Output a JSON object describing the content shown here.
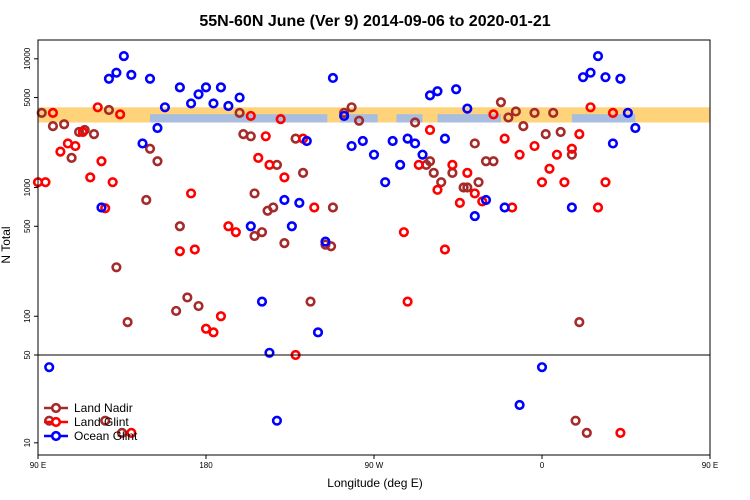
{
  "chart_data": {
    "type": "scatter",
    "title": "55N-60N June (Ver 9)   2014-09-06 to 2020-01-21",
    "xlabel": "Longitude (deg E)",
    "ylabel": "N Total",
    "x_scale": "longitude from 90 E to 180 (wrapping through 180 and 90 W)",
    "x_range": [
      90,
      450
    ],
    "x_ticks": [
      {
        "value": 90,
        "label": "90 E"
      },
      {
        "value": 180,
        "label": "180"
      },
      {
        "value": 270,
        "label": "90 W"
      },
      {
        "value": 360,
        "label": "0"
      },
      {
        "value": 450,
        "label": "90 E"
      },
      {
        "value": 540,
        "label": "180"
      }
    ],
    "y_scale": "log",
    "y_range": [
      8,
      14000
    ],
    "y_break_at": 50,
    "y_ticks_upper": [
      {
        "value": 50,
        "label": "50"
      },
      {
        "value": 100,
        "label": "100"
      },
      {
        "value": 500,
        "label": "500"
      },
      {
        "value": 1000,
        "label": "1000"
      },
      {
        "value": 5000,
        "label": "5000"
      },
      {
        "value": 10000,
        "label": "10000"
      }
    ],
    "y_ticks_lower": [
      {
        "value": 10,
        "label": "10"
      },
      {
        "value": 50,
        "label": "50"
      }
    ],
    "band": {
      "y_from": 3200,
      "y_to": 4200,
      "land_color": "#FFD37A",
      "ocean_color": "#A9BEDF"
    },
    "legend": {
      "position": "bottom-left",
      "entries": [
        "Land Nadir",
        "Land Glint",
        "Ocean Glint"
      ]
    },
    "series": [
      {
        "name": "Land Nadir",
        "color": "#A52A2A",
        "points": [
          [
            92,
            3800
          ],
          [
            98,
            3000
          ],
          [
            104,
            3100
          ],
          [
            108,
            1700
          ],
          [
            112,
            2700
          ],
          [
            115,
            2800
          ],
          [
            120,
            2600
          ],
          [
            128,
            4000
          ],
          [
            126,
            15
          ],
          [
            132,
            240
          ],
          [
            138,
            90
          ],
          [
            148,
            800
          ],
          [
            135,
            12
          ],
          [
            164,
            110
          ],
          [
            166,
            500
          ],
          [
            170,
            140
          ],
          [
            176,
            120
          ],
          [
            198,
            3800
          ],
          [
            200,
            2600
          ],
          [
            204,
            2500
          ],
          [
            206,
            900
          ],
          [
            206,
            420
          ],
          [
            210,
            450
          ],
          [
            213,
            660
          ],
          [
            216,
            700
          ],
          [
            218,
            1500
          ],
          [
            222,
            370
          ],
          [
            228,
            2400
          ],
          [
            232,
            1300
          ],
          [
            236,
            130
          ],
          [
            244,
            360
          ],
          [
            247,
            350
          ],
          [
            248,
            700
          ],
          [
            292,
            3200
          ],
          [
            298,
            1500
          ],
          [
            300,
            1600
          ],
          [
            302,
            1300
          ],
          [
            306,
            1100
          ],
          [
            312,
            1300
          ],
          [
            318,
            1000
          ],
          [
            320,
            1000
          ],
          [
            324,
            2200
          ],
          [
            326,
            1100
          ],
          [
            330,
            1600
          ],
          [
            334,
            1600
          ],
          [
            338,
            4600
          ],
          [
            342,
            3500
          ],
          [
            346,
            3900
          ],
          [
            350,
            3000
          ],
          [
            356,
            3800
          ],
          [
            362,
            2600
          ],
          [
            366,
            3800
          ],
          [
            370,
            2700
          ],
          [
            376,
            1800
          ],
          [
            378,
            15
          ],
          [
            380,
            90
          ],
          [
            384,
            12
          ],
          [
            96,
            15
          ],
          [
            150,
            2000
          ],
          [
            154,
            1600
          ],
          [
            254,
            3800
          ],
          [
            258,
            4200
          ],
          [
            262,
            3300
          ]
        ]
      },
      {
        "name": "Land Glint",
        "color": "#FF0000",
        "points": [
          [
            90,
            1100
          ],
          [
            94,
            1100
          ],
          [
            98,
            3800
          ],
          [
            102,
            1900
          ],
          [
            106,
            2200
          ],
          [
            110,
            2100
          ],
          [
            114,
            2700
          ],
          [
            118,
            1200
          ],
          [
            122,
            4200
          ],
          [
            124,
            1600
          ],
          [
            126,
            690
          ],
          [
            130,
            1100
          ],
          [
            134,
            3700
          ],
          [
            140,
            12
          ],
          [
            166,
            320
          ],
          [
            172,
            900
          ],
          [
            174,
            330
          ],
          [
            180,
            80
          ],
          [
            184,
            75
          ],
          [
            188,
            100
          ],
          [
            192,
            500
          ],
          [
            196,
            450
          ],
          [
            204,
            3600
          ],
          [
            208,
            1700
          ],
          [
            212,
            2500
          ],
          [
            214,
            1500
          ],
          [
            220,
            3400
          ],
          [
            222,
            1200
          ],
          [
            228,
            50
          ],
          [
            232,
            2400
          ],
          [
            238,
            700
          ],
          [
            286,
            450
          ],
          [
            288,
            130
          ],
          [
            294,
            1500
          ],
          [
            300,
            2800
          ],
          [
            304,
            960
          ],
          [
            308,
            330
          ],
          [
            312,
            1500
          ],
          [
            316,
            760
          ],
          [
            320,
            1300
          ],
          [
            324,
            900
          ],
          [
            328,
            780
          ],
          [
            334,
            3700
          ],
          [
            340,
            2400
          ],
          [
            344,
            700
          ],
          [
            348,
            1800
          ],
          [
            356,
            2100
          ],
          [
            360,
            1100
          ],
          [
            364,
            1400
          ],
          [
            368,
            1800
          ],
          [
            372,
            1100
          ],
          [
            376,
            2000
          ],
          [
            380,
            2600
          ],
          [
            386,
            4200
          ],
          [
            390,
            700
          ],
          [
            394,
            1100
          ],
          [
            398,
            3800
          ],
          [
            402,
            12
          ]
        ]
      },
      {
        "name": "Ocean Glint",
        "color": "#0000FF",
        "points": [
          [
            96,
            40
          ],
          [
            124,
            700
          ],
          [
            128,
            7000
          ],
          [
            132,
            7800
          ],
          [
            136,
            10500
          ],
          [
            140,
            7500
          ],
          [
            146,
            2200
          ],
          [
            150,
            7000
          ],
          [
            154,
            2900
          ],
          [
            158,
            4200
          ],
          [
            166,
            6000
          ],
          [
            172,
            4500
          ],
          [
            176,
            5300
          ],
          [
            180,
            6000
          ],
          [
            184,
            4500
          ],
          [
            188,
            6000
          ],
          [
            192,
            4300
          ],
          [
            198,
            5000
          ],
          [
            204,
            500
          ],
          [
            210,
            130
          ],
          [
            214,
            52
          ],
          [
            218,
            15
          ],
          [
            222,
            800
          ],
          [
            226,
            500
          ],
          [
            230,
            760
          ],
          [
            234,
            2300
          ],
          [
            240,
            75
          ],
          [
            244,
            380
          ],
          [
            248,
            7100
          ],
          [
            254,
            3600
          ],
          [
            258,
            2100
          ],
          [
            264,
            2300
          ],
          [
            270,
            1800
          ],
          [
            276,
            1100
          ],
          [
            280,
            2300
          ],
          [
            284,
            1500
          ],
          [
            288,
            2400
          ],
          [
            292,
            2200
          ],
          [
            296,
            1800
          ],
          [
            300,
            5200
          ],
          [
            304,
            5600
          ],
          [
            308,
            2400
          ],
          [
            314,
            5800
          ],
          [
            320,
            4100
          ],
          [
            324,
            600
          ],
          [
            330,
            800
          ],
          [
            340,
            700
          ],
          [
            348,
            20
          ],
          [
            360,
            40
          ],
          [
            376,
            700
          ],
          [
            382,
            7200
          ],
          [
            386,
            7800
          ],
          [
            390,
            10500
          ],
          [
            394,
            7200
          ],
          [
            398,
            2200
          ],
          [
            402,
            7000
          ],
          [
            406,
            3800
          ],
          [
            410,
            2900
          ]
        ]
      }
    ]
  }
}
